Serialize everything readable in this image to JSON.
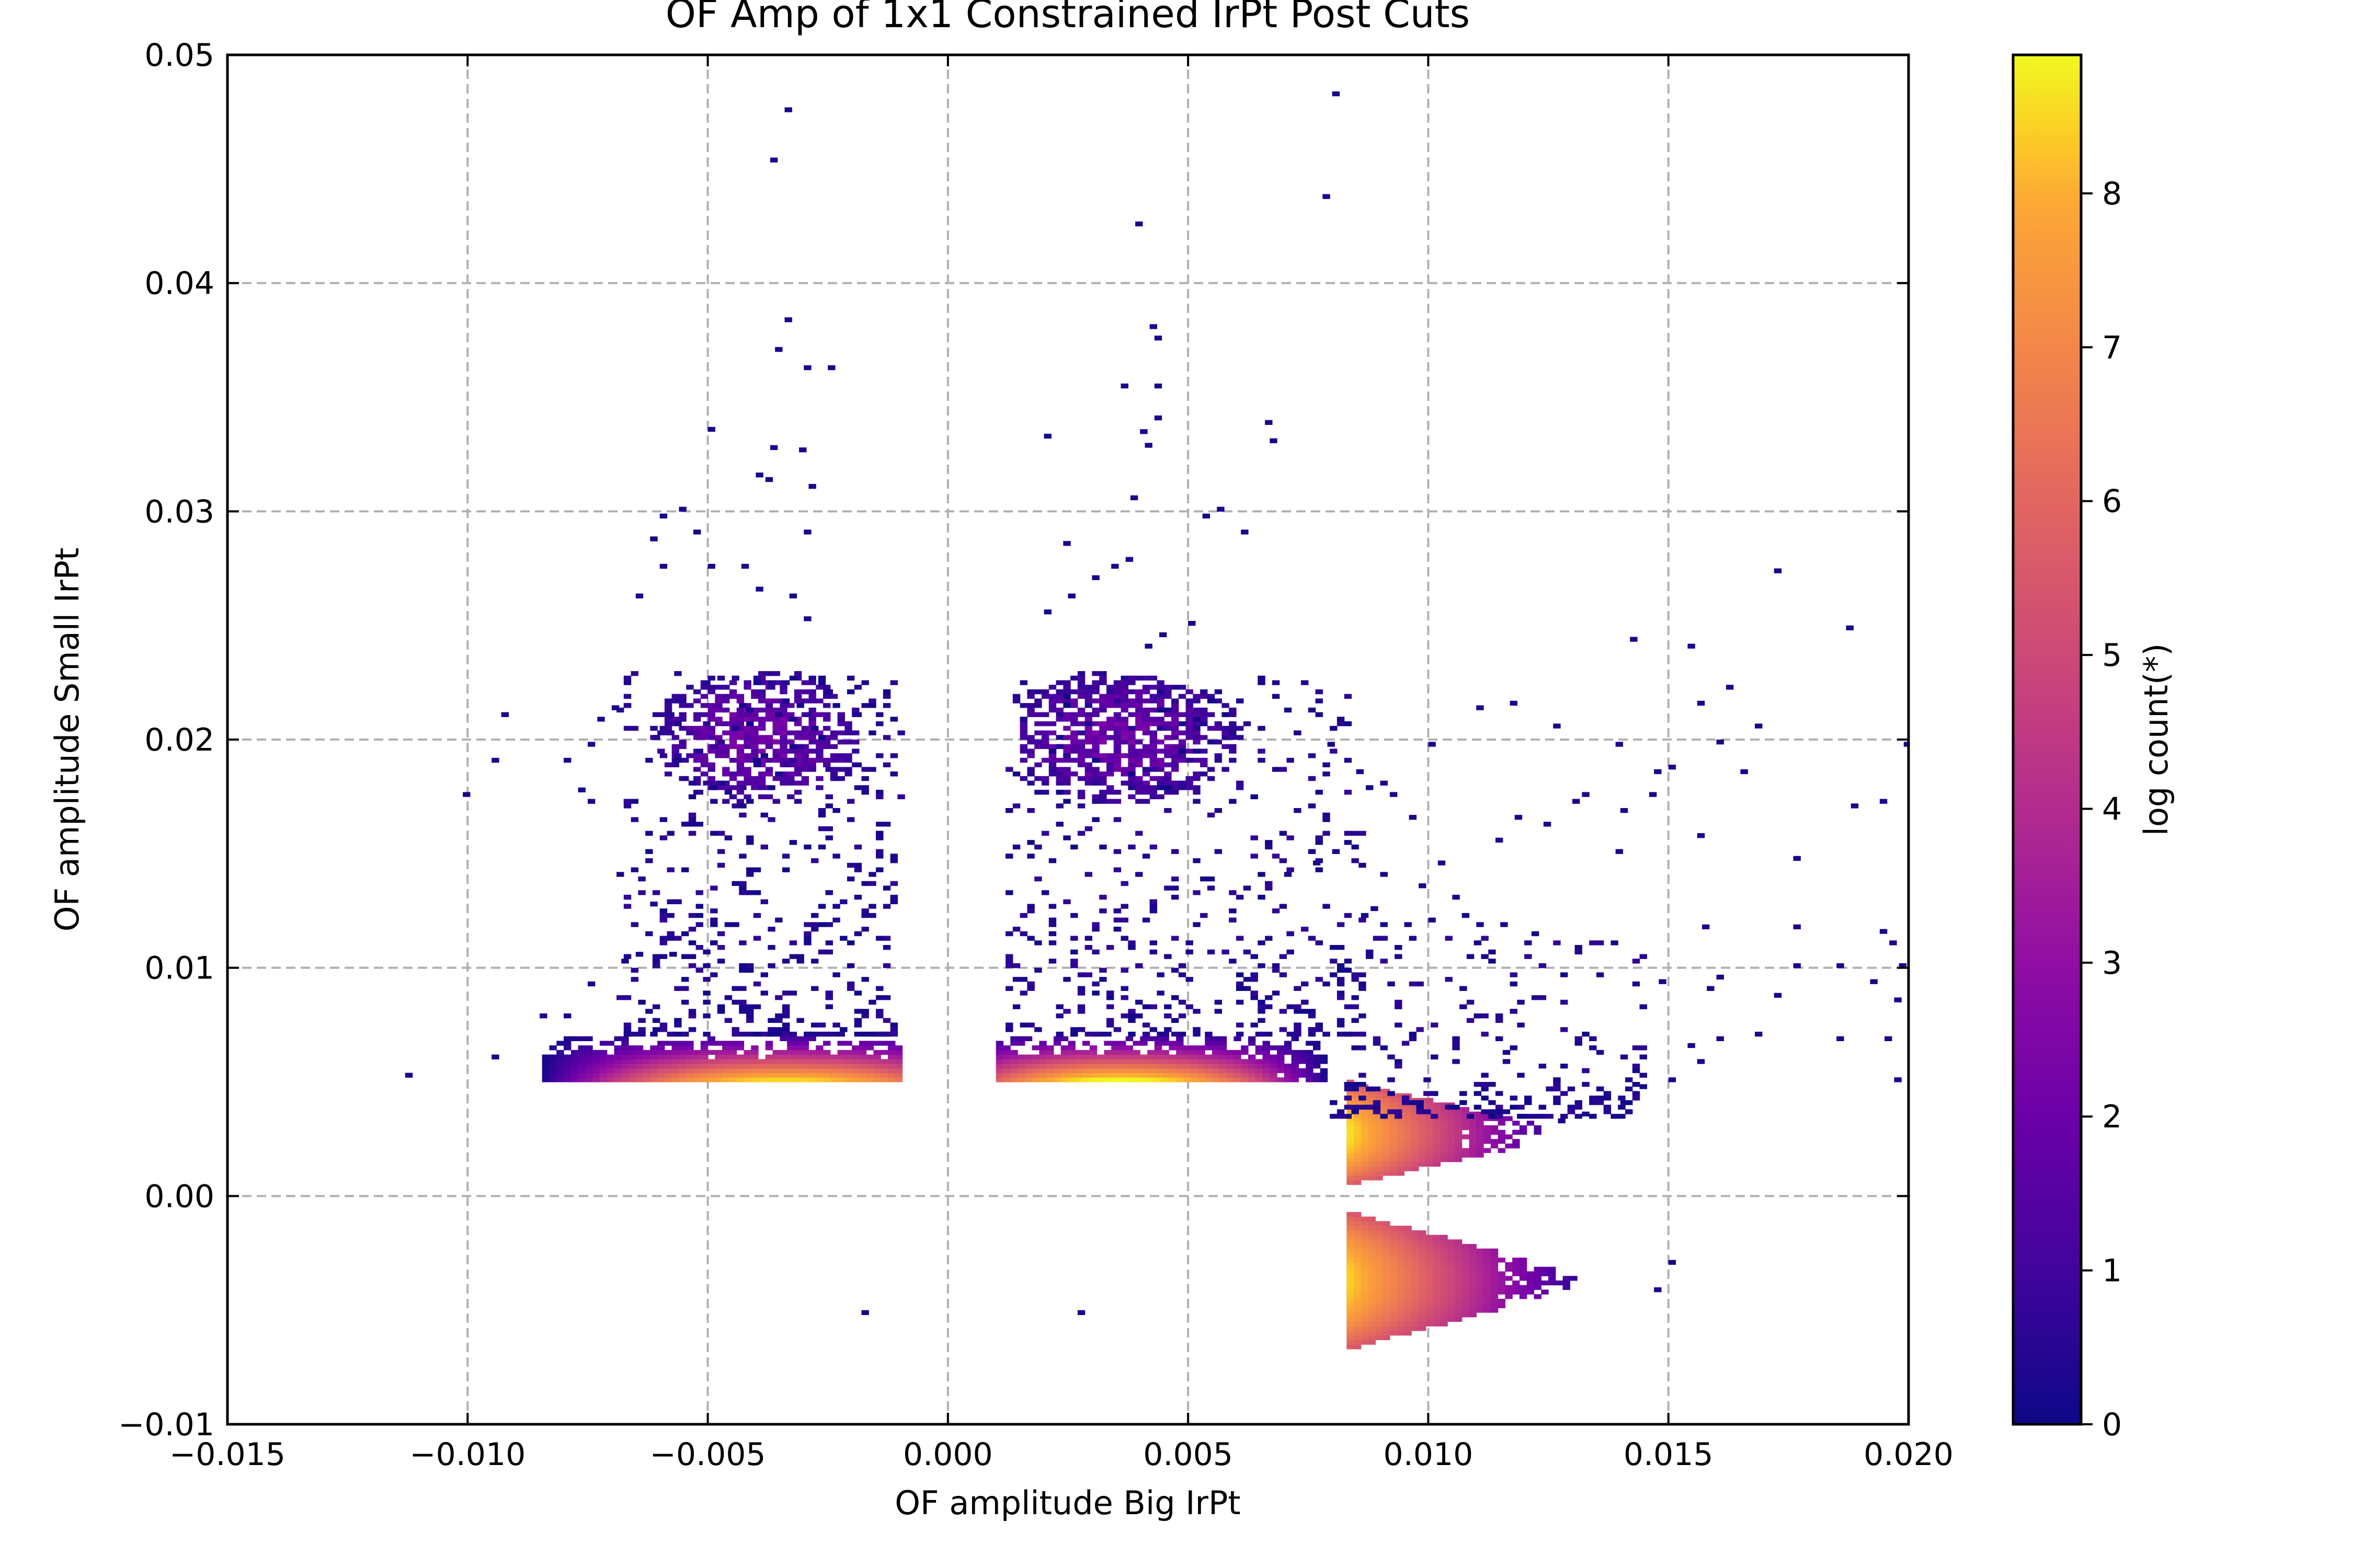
{
  "chart_data": {
    "type": "heatmap",
    "title": "OF Amp of 1x1 Constrained IrPt Post Cuts",
    "xlabel": "OF amplitude Big IrPt",
    "ylabel": "OF amplitude Small IrPt",
    "xlim": [
      -0.015,
      0.02
    ],
    "ylim": [
      -0.01,
      0.05
    ],
    "x_ticks": [
      -0.015,
      -0.01,
      -0.005,
      0.0,
      0.005,
      0.01,
      0.015,
      0.02
    ],
    "x_tick_labels": [
      "−0.015",
      "−0.010",
      "−0.005",
      "0.000",
      "0.005",
      "0.010",
      "0.015",
      "0.020"
    ],
    "y_ticks": [
      -0.01,
      0.0,
      0.01,
      0.02,
      0.03,
      0.04,
      0.05
    ],
    "y_tick_labels": [
      "−0.01",
      "0.00",
      "0.01",
      "0.02",
      "0.03",
      "0.04",
      "0.05"
    ],
    "grid": true,
    "colormap": "plasma",
    "colorbar": {
      "label": "log count(*)",
      "range": [
        0,
        8.9
      ],
      "ticks": [
        0,
        1,
        2,
        3,
        4,
        5,
        6,
        7,
        8
      ],
      "tick_labels": [
        "0",
        "1",
        "2",
        "3",
        "4",
        "5",
        "6",
        "7",
        "8"
      ]
    },
    "bin_size": {
      "x": 0.00015,
      "y": 0.0002
    },
    "clusters": [
      {
        "name": "left band",
        "x_range": [
          -0.0095,
          -0.001
        ],
        "y_range": [
          0.005,
          0.007
        ],
        "peak_x": -0.0035,
        "peak_log_count": 8.5
      },
      {
        "name": "center band",
        "x_range": [
          0.001,
          0.0083
        ],
        "y_range": [
          0.005,
          0.007
        ],
        "peak_x": 0.0035,
        "peak_log_count": 8.9
      },
      {
        "name": "upper-right wedge",
        "x_range": [
          0.0083,
          0.0125
        ],
        "y_range": [
          0.0005,
          0.005
        ],
        "peak_x": 0.0085,
        "peak_log_count": 8.6
      },
      {
        "name": "lower-right wedge",
        "x_range": [
          0.0083,
          0.013
        ],
        "y_range": [
          -0.0067,
          -0.0007
        ],
        "peak_x": 0.0085,
        "peak_log_count": 8.4
      },
      {
        "name": "left upper clump",
        "x_range": [
          -0.0065,
          -0.002
        ],
        "y_range": [
          0.017,
          0.023
        ],
        "peak_x": -0.004,
        "peak_log_count": 2.6
      },
      {
        "name": "center upper clump",
        "x_range": [
          0.0015,
          0.0065
        ],
        "y_range": [
          0.017,
          0.023
        ],
        "peak_x": 0.0035,
        "peak_log_count": 2.6
      }
    ],
    "sparse_points": [
      [
        -0.0034,
        0.0475
      ],
      [
        -0.0037,
        0.0453
      ],
      [
        0.008,
        0.0482
      ],
      [
        0.0078,
        0.0437
      ],
      [
        0.0039,
        0.0425
      ],
      [
        -0.0034,
        0.0383
      ],
      [
        -0.0036,
        0.037
      ],
      [
        -0.003,
        0.0362
      ],
      [
        -0.0025,
        0.0362
      ],
      [
        0.0042,
        0.038
      ],
      [
        0.0043,
        0.0375
      ],
      [
        0.0036,
        0.0354
      ],
      [
        0.0043,
        0.0354
      ],
      [
        0.0066,
        0.0338
      ],
      [
        0.0067,
        0.033
      ],
      [
        0.0043,
        0.034
      ],
      [
        0.004,
        0.0334
      ],
      [
        0.0041,
        0.0328
      ],
      [
        0.002,
        0.0332
      ],
      [
        -0.005,
        0.0335
      ],
      [
        -0.0037,
        0.0327
      ],
      [
        -0.0031,
        0.0326
      ],
      [
        -0.004,
        0.0315
      ],
      [
        -0.0038,
        0.0313
      ],
      [
        -0.0029,
        0.031
      ],
      [
        -0.006,
        0.0297
      ],
      [
        -0.0056,
        0.03
      ],
      [
        -0.0053,
        0.029
      ],
      [
        -0.0062,
        0.0287
      ],
      [
        0.0038,
        0.0305
      ],
      [
        0.0053,
        0.0297
      ],
      [
        0.0056,
        0.03
      ],
      [
        0.0061,
        0.029
      ],
      [
        0.0024,
        0.0285
      ],
      [
        -0.003,
        0.029
      ],
      [
        -0.0043,
        0.0275
      ],
      [
        -0.006,
        0.0275
      ],
      [
        -0.005,
        0.0275
      ],
      [
        -0.0065,
        0.0262
      ],
      [
        -0.004,
        0.0265
      ],
      [
        -0.0033,
        0.0262
      ],
      [
        -0.003,
        0.0252
      ],
      [
        0.0025,
        0.0262
      ],
      [
        0.003,
        0.027
      ],
      [
        0.0034,
        0.0275
      ],
      [
        0.0037,
        0.0278
      ],
      [
        0.002,
        0.0255
      ],
      [
        0.005,
        0.025
      ],
      [
        0.0044,
        0.0245
      ],
      [
        0.0041,
        0.024
      ],
      [
        0.0172,
        0.0273
      ],
      [
        0.0187,
        0.0248
      ],
      [
        0.0142,
        0.0243
      ],
      [
        0.0154,
        0.024
      ],
      [
        0.0162,
        0.0222
      ],
      [
        0.0156,
        0.0215
      ],
      [
        0.0126,
        0.0205
      ],
      [
        0.0117,
        0.0215
      ],
      [
        0.011,
        0.0213
      ],
      [
        0.01,
        0.0197
      ],
      [
        0.0139,
        0.0197
      ],
      [
        0.016,
        0.0198
      ],
      [
        0.0168,
        0.0205
      ],
      [
        0.0199,
        0.0197
      ],
      [
        0.0147,
        0.0185
      ],
      [
        0.015,
        0.0187
      ],
      [
        0.0165,
        0.0185
      ],
      [
        0.0188,
        0.017
      ],
      [
        0.0194,
        0.0172
      ],
      [
        0.0132,
        0.0175
      ],
      [
        0.013,
        0.0172
      ],
      [
        0.0146,
        0.0175
      ],
      [
        0.014,
        0.0168
      ],
      [
        0.0118,
        0.0165
      ],
      [
        0.0096,
        0.0165
      ],
      [
        0.0114,
        0.0155
      ],
      [
        0.0124,
        0.0162
      ],
      [
        0.0139,
        0.015
      ],
      [
        0.0156,
        0.0157
      ],
      [
        0.0176,
        0.0147
      ],
      [
        0.0157,
        0.0117
      ],
      [
        0.0176,
        0.0117
      ],
      [
        0.0196,
        0.011
      ],
      [
        0.0194,
        0.0115
      ],
      [
        0.02,
        0.0117
      ],
      [
        0.0198,
        0.01
      ],
      [
        0.0185,
        0.01
      ],
      [
        0.0176,
        0.01
      ],
      [
        0.0192,
        0.0093
      ],
      [
        0.0197,
        0.0085
      ],
      [
        0.016,
        0.0095
      ],
      [
        0.0158,
        0.009
      ],
      [
        0.0148,
        0.0093
      ],
      [
        0.0172,
        0.0087
      ],
      [
        0.0185,
        0.0068
      ],
      [
        0.0168,
        0.007
      ],
      [
        0.016,
        0.0068
      ],
      [
        0.0154,
        0.0065
      ],
      [
        0.014,
        0.006
      ],
      [
        0.0156,
        0.0058
      ],
      [
        0.015,
        0.005
      ],
      [
        0.0144,
        0.0047
      ],
      [
        0.014,
        0.004
      ],
      [
        0.0132,
        0.0035
      ],
      [
        0.0127,
        0.0032
      ],
      [
        0.0197,
        0.005
      ],
      [
        0.0195,
        0.0068
      ],
      [
        0.015,
        -0.003
      ],
      [
        0.0147,
        -0.0042
      ],
      [
        -0.0018,
        -0.0052
      ],
      [
        0.0027,
        -0.0052
      ],
      [
        -0.0113,
        0.0052
      ],
      [
        -0.0095,
        0.006
      ],
      [
        -0.008,
        0.0078
      ],
      [
        -0.0085,
        0.0078
      ],
      [
        -0.0075,
        0.0092
      ],
      [
        -0.0068,
        0.0102
      ],
      [
        -0.0065,
        0.0105
      ],
      [
        -0.0062,
        0.0127
      ],
      [
        -0.0058,
        0.0105
      ],
      [
        -0.0077,
        0.0177
      ],
      [
        -0.0075,
        0.0172
      ],
      [
        -0.0101,
        0.0175
      ],
      [
        -0.0095,
        0.019
      ],
      [
        -0.0093,
        0.021
      ],
      [
        -0.008,
        0.019
      ],
      [
        -0.0075,
        0.0197
      ],
      [
        -0.0073,
        0.0208
      ],
      [
        -0.007,
        0.0213
      ],
      [
        0.0085,
        0.0185
      ],
      [
        0.0087,
        0.0178
      ],
      [
        0.009,
        0.018
      ],
      [
        0.0092,
        0.0175
      ],
      [
        0.0079,
        0.0197
      ],
      [
        0.0081,
        0.0208
      ],
      [
        0.0075,
        0.0212
      ],
      [
        0.007,
        0.0212
      ],
      [
        0.0072,
        0.0202
      ],
      [
        0.008,
        0.015
      ],
      [
        0.0076,
        0.0145
      ],
      [
        0.007,
        0.014
      ],
      [
        0.009,
        0.014
      ],
      [
        0.0102,
        0.0145
      ],
      [
        0.0098,
        0.0135
      ],
      [
        0.0105,
        0.013
      ],
      [
        0.0107,
        0.0122
      ],
      [
        0.011,
        0.0118
      ],
      [
        0.0115,
        0.0118
      ],
      [
        0.01,
        0.012
      ],
      [
        0.0095,
        0.0118
      ],
      [
        0.009,
        0.0118
      ],
      [
        0.0086,
        0.0122
      ],
      [
        0.0088,
        0.0125
      ]
    ]
  }
}
